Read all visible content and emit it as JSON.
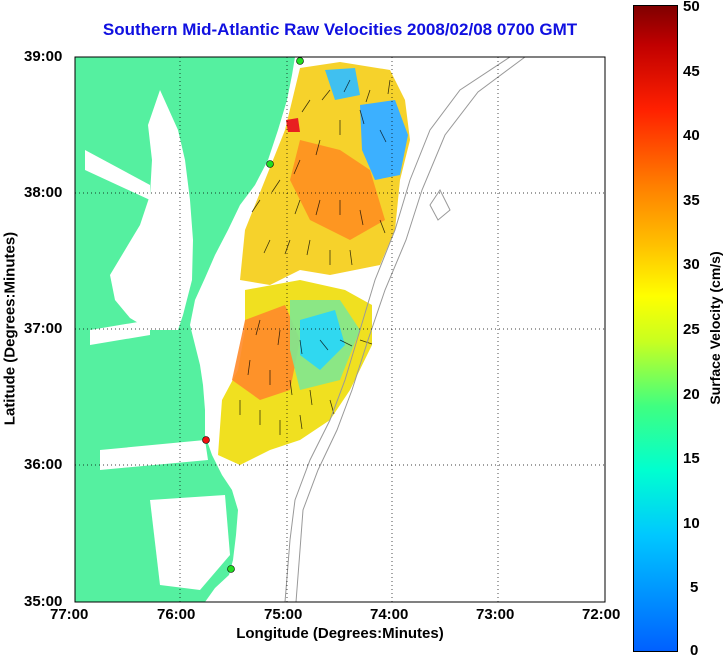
{
  "title": "Southern Mid-Atlantic Raw Velocities 2008/02/08 0700 GMT",
  "x_axis": {
    "label": "Longitude (Degrees:Minutes)",
    "ticks": [
      "77:00",
      "76:00",
      "75:00",
      "74:00",
      "73:00",
      "72:00"
    ]
  },
  "y_axis": {
    "label": "Latitude (Degrees:Minutes)",
    "ticks": [
      "39:00",
      "38:00",
      "37:00",
      "36:00",
      "35:00"
    ]
  },
  "colorbar": {
    "label": "Surface Velocity (cm/s)",
    "ticks": [
      "50",
      "45",
      "40",
      "35",
      "30",
      "25",
      "20",
      "15",
      "10",
      "5",
      "0"
    ],
    "min": 0,
    "max": 50
  },
  "colors": {
    "land": "#55f0a0",
    "title": "#1010e0",
    "station_green": "#22dd22",
    "station_red": "#ee1111"
  }
}
